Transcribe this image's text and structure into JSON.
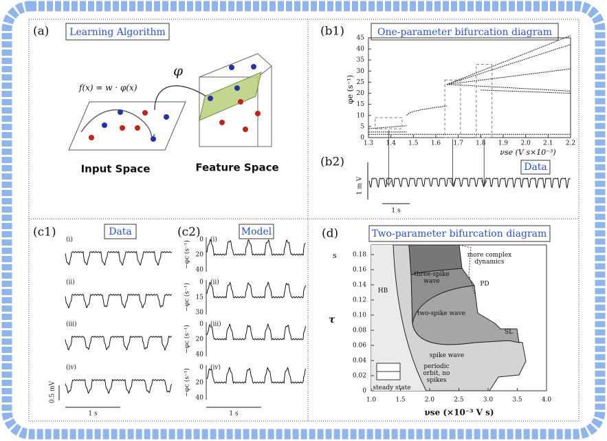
{
  "panels": {
    "a": {
      "label": "(a)",
      "title": "Learning Algorithm",
      "formula": "f(x) = w · φ(x)",
      "map": "φ",
      "input": "Input Space",
      "feature": "Feature Space"
    },
    "b1": {
      "label": "(b1)",
      "title": "One-parameter bifurcation diagram",
      "ylabel": "φe (s⁻¹)",
      "xlabel": "νse (V s×10⁻³)",
      "yticks": [
        "0",
        "5",
        "10",
        "15",
        "20",
        "25",
        "30",
        "35",
        "40",
        "45"
      ],
      "xticks": [
        "1.3",
        "1.4",
        "1.5",
        "1.6",
        "1.7",
        "1.8",
        "1.9",
        "2.0",
        "2.1",
        "2.2"
      ]
    },
    "b2": {
      "label": "(b2)",
      "title": "Data",
      "vscale": "1 m V",
      "tscale": "1 s"
    },
    "c1": {
      "label": "(c1)",
      "title": "Data",
      "rows": [
        "(i)",
        "(ii)",
        "(iii)",
        "(iv)"
      ],
      "vscale": "0.5 mV",
      "tscale": "1 s"
    },
    "c2": {
      "label": "(c2)",
      "title": "Model",
      "rows": [
        "(i)",
        "(ii)",
        "(iii)",
        "(iv)"
      ],
      "ylabel": "−φc (s⁻¹)",
      "yticks": [
        [
          "0",
          "20",
          "40"
        ],
        [
          "0",
          "15",
          "30"
        ],
        [
          "0",
          "20",
          "40"
        ],
        [
          "0",
          "20",
          "40"
        ]
      ],
      "tscale": "1 s"
    },
    "d": {
      "label": "(d)",
      "title": "Two-parameter bifurcation diagram",
      "ylabel": "τ",
      "yunit": "s",
      "xlabel": "νse (×10⁻³ V s)",
      "yticks": [
        "0",
        "0.02",
        "0.04",
        "0.06",
        "0.08",
        "0.10",
        "0.12",
        "0.14",
        "0.16",
        "0.18"
      ],
      "xticks": [
        "1.0",
        "1.5",
        "2.0",
        "2.5",
        "3.0",
        "3.5",
        "4.0"
      ],
      "regions": {
        "complex": "more complex dynamics",
        "three": "three-spike wave",
        "pd": "PD",
        "hb": "HB",
        "two": "two-spike wave",
        "sl": "SL",
        "spike": "spike wave",
        "periodic": "periodic orbit, no spikes",
        "steady": "steady state"
      }
    }
  }
}
